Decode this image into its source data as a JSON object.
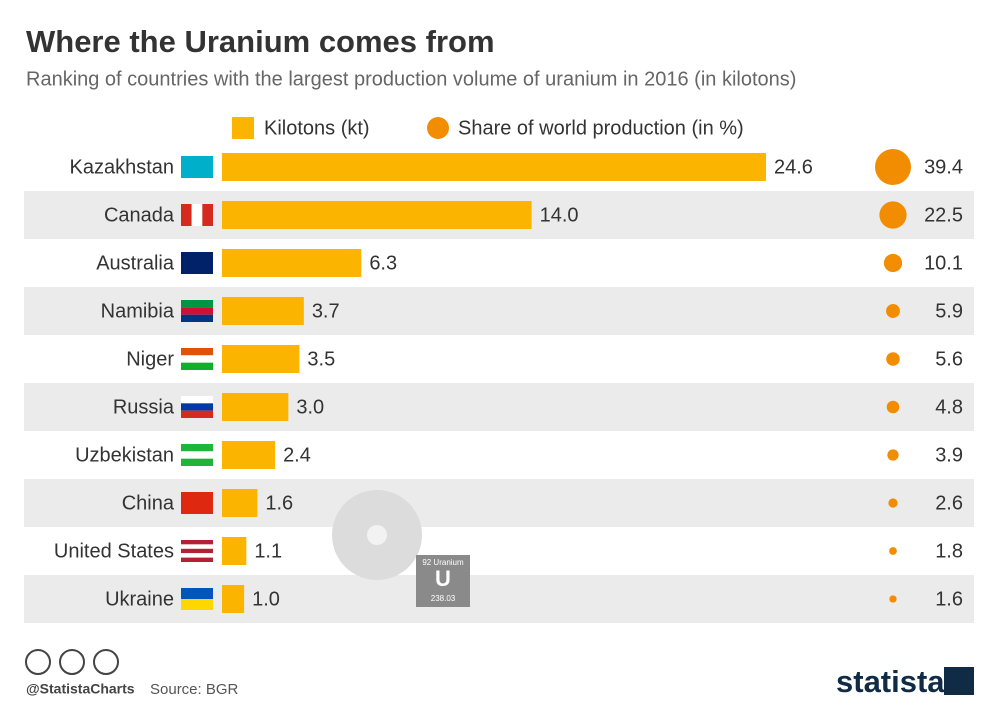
{
  "chart_data": {
    "type": "bar",
    "orientation": "horizontal",
    "title": "Where the Uranium comes from",
    "subtitle": "Ranking of countries with the largest production volume of uranium in 2016 (in kilotons)",
    "categories": [
      "Kazakhstan",
      "Canada",
      "Australia",
      "Namibia",
      "Niger",
      "Russia",
      "Uzbekistan",
      "China",
      "United States",
      "Ukraine"
    ],
    "series": [
      {
        "name": "Kilotons (kt)",
        "color": "#fbb400",
        "values": [
          24.6,
          14.0,
          6.3,
          3.7,
          3.5,
          3.0,
          2.4,
          1.6,
          1.1,
          1.0
        ],
        "value_labels": [
          "24.6",
          "14.0",
          "6.3",
          "3.7",
          "3.5",
          "3.0",
          "2.4",
          "1.6",
          "1.1",
          "1.0"
        ]
      },
      {
        "name": "Share of world production (in %)",
        "color": "#f28c00",
        "marker": "bubble",
        "values": [
          39.4,
          22.5,
          10.1,
          5.9,
          5.6,
          4.8,
          3.9,
          2.6,
          1.8,
          1.6
        ]
      }
    ],
    "illustration": {
      "element_number": "92 Uranium",
      "element_symbol": "U",
      "element_mass": "238.03"
    },
    "credit": "@StatistaCharts",
    "source": "Source: BGR",
    "brand": "statista"
  }
}
